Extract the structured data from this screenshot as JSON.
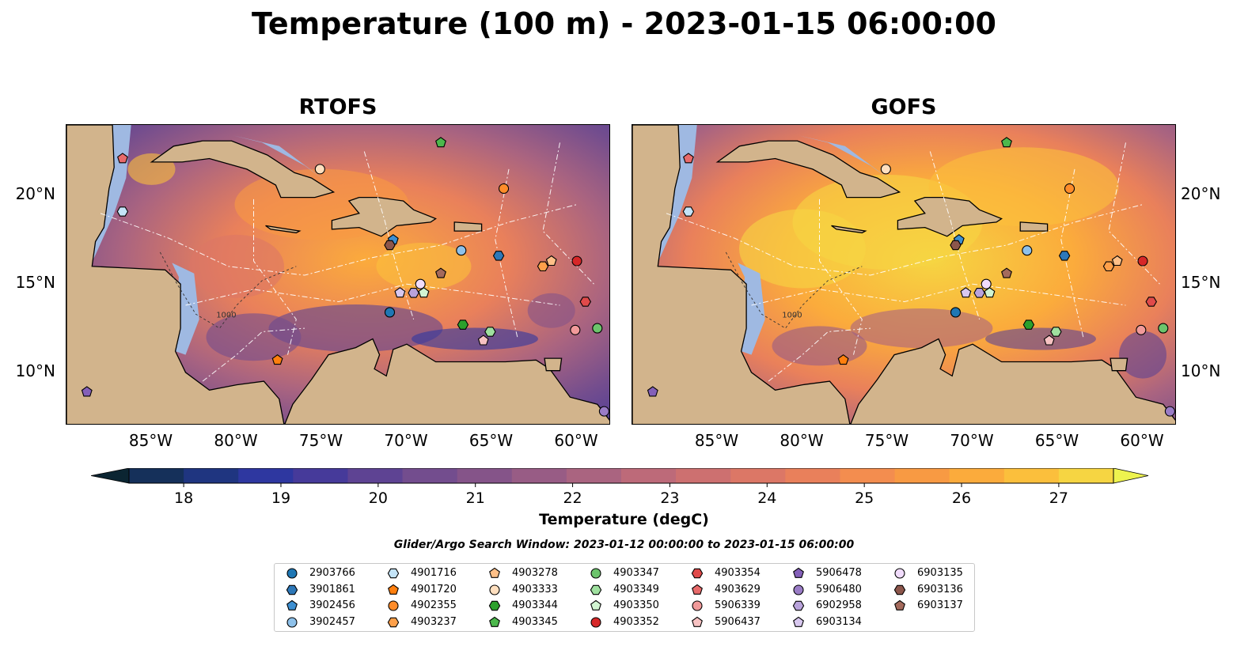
{
  "title": "Temperature (100 m) - 2023-01-15 06:00:00",
  "panels": [
    {
      "title": "RTOFS",
      "variant": "rtofs"
    },
    {
      "title": "GOFS",
      "variant": "gofs"
    }
  ],
  "map": {
    "lon_range": [
      -90,
      -58
    ],
    "lat_range": [
      7,
      24
    ],
    "lon_ticks": [
      "85°W",
      "80°W",
      "75°W",
      "70°W",
      "65°W",
      "60°W"
    ],
    "lat_ticks": [
      "20°N",
      "15°N",
      "10°N"
    ],
    "contour_label": "1000",
    "colors": {
      "land": "#d2b48c",
      "ocean_shallow": "#9fb9e2",
      "deep_pacific": "#0b2532",
      "grid": "#ffffff"
    }
  },
  "colorbar": {
    "label": "Temperature (degC)",
    "min": 18,
    "max": 27,
    "step": 0.5,
    "ticks": [
      "18",
      "19",
      "20",
      "21",
      "22",
      "23",
      "24",
      "25",
      "26",
      "27"
    ],
    "colormap": [
      "#0b2532",
      "#15305a",
      "#1f3580",
      "#2e37a0",
      "#463a9a",
      "#5e4393",
      "#734d8e",
      "#855489",
      "#985c85",
      "#aa6480",
      "#bd6a79",
      "#cd7070",
      "#dc7766",
      "#e9805b",
      "#f38d4f",
      "#f89a43",
      "#fbab3c",
      "#fbbf3c",
      "#f6d542",
      "#eef34f"
    ]
  },
  "search_window": "Glider/Argo Search Window: 2023-01-12 00:00:00 to 2023-01-15 06:00:00",
  "floats": [
    {
      "id": "2903766",
      "shape": "circle",
      "color": "#1f77b4",
      "lon": -71.0,
      "lat": 13.4
    },
    {
      "id": "3901861",
      "shape": "hexagon",
      "color": "#2e78b8",
      "lon": -64.6,
      "lat": 16.6
    },
    {
      "id": "3902456",
      "shape": "pentagon",
      "color": "#3d8fd1",
      "lon": -70.8,
      "lat": 17.5
    },
    {
      "id": "3902457",
      "shape": "circle",
      "color": "#8ec1ea",
      "lon": -66.8,
      "lat": 16.9
    },
    {
      "id": "4901716",
      "shape": "hexagon",
      "color": "#c4e4f8",
      "lon": -86.7,
      "lat": 19.1
    },
    {
      "id": "4901720",
      "shape": "pentagon",
      "color": "#ff7f0e",
      "lon": -77.6,
      "lat": 10.7
    },
    {
      "id": "4902355",
      "shape": "circle",
      "color": "#ff8c2a",
      "lon": -64.3,
      "lat": 20.4
    },
    {
      "id": "4903237",
      "shape": "hexagon",
      "color": "#ffa04a",
      "lon": -62.0,
      "lat": 16.0
    },
    {
      "id": "4903278",
      "shape": "pentagon",
      "color": "#ffc088",
      "lon": -61.5,
      "lat": 16.3
    },
    {
      "id": "4903333",
      "shape": "circle",
      "color": "#ffdfbf",
      "lon": -75.1,
      "lat": 21.5
    },
    {
      "id": "4903344",
      "shape": "hexagon",
      "color": "#2ca02c",
      "lon": -66.7,
      "lat": 12.7
    },
    {
      "id": "4903345",
      "shape": "pentagon",
      "color": "#4cb84c",
      "lon": -68.0,
      "lat": 23.0
    },
    {
      "id": "4903347",
      "shape": "circle",
      "color": "#6cc46c",
      "lon": -58.8,
      "lat": 12.5
    },
    {
      "id": "4903349",
      "shape": "hexagon",
      "color": "#9fe09f",
      "lon": -65.1,
      "lat": 12.3
    },
    {
      "id": "4903350",
      "shape": "pentagon",
      "color": "#d2f5d2",
      "lon": -69.0,
      "lat": 14.5
    },
    {
      "id": "4903352",
      "shape": "circle",
      "color": "#d62728",
      "lon": -60.0,
      "lat": 16.3
    },
    {
      "id": "4903354",
      "shape": "hexagon",
      "color": "#e04a4a",
      "lon": -59.5,
      "lat": 14.0
    },
    {
      "id": "4903629",
      "shape": "pentagon",
      "color": "#e86a6a",
      "lon": -86.7,
      "lat": 22.1
    },
    {
      "id": "5906339",
      "shape": "circle",
      "color": "#f19a9a",
      "lon": -60.1,
      "lat": 12.4
    },
    {
      "id": "5906437",
      "shape": "pentagon",
      "color": "#f7c2c2",
      "lon": -65.5,
      "lat": 11.8
    },
    {
      "id": "5906478",
      "shape": "pentagon",
      "color": "#8460b9",
      "lon": -88.8,
      "lat": 8.9
    },
    {
      "id": "5906480",
      "shape": "circle",
      "color": "#9a7cc6",
      "lon": -58.4,
      "lat": 7.8
    },
    {
      "id": "6902958",
      "shape": "hexagon",
      "color": "#b9a3db",
      "lon": -69.6,
      "lat": 14.5
    },
    {
      "id": "6903134",
      "shape": "pentagon",
      "color": "#d8c8ef",
      "lon": -70.4,
      "lat": 14.5
    },
    {
      "id": "6903135",
      "shape": "circle",
      "color": "#f1dcfc",
      "lon": -69.2,
      "lat": 15.0
    },
    {
      "id": "6903136",
      "shape": "hexagon",
      "color": "#8c564b",
      "lon": -71.0,
      "lat": 17.2
    },
    {
      "id": "6903137",
      "shape": "pentagon",
      "color": "#a46a5c",
      "lon": -68.0,
      "lat": 15.6
    }
  ]
}
